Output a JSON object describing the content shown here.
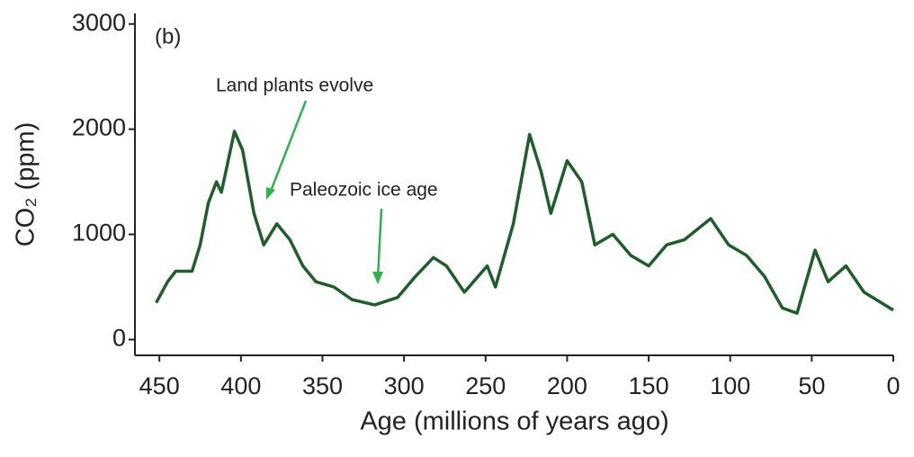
{
  "chart_data": {
    "type": "line",
    "panel_label": "(b)",
    "x_label": "Age (millions of years ago)",
    "y_label": "CO₂ (ppm)",
    "annotations": [
      "Land plants evolve",
      "Paleozoic ice age"
    ],
    "x": [
      452,
      445,
      440,
      430,
      425,
      420,
      415,
      412,
      404,
      399,
      392,
      386,
      378,
      370,
      362,
      354,
      343,
      332,
      318,
      304,
      293,
      282,
      274,
      263,
      249,
      244,
      233,
      223,
      216,
      210,
      200,
      191,
      183,
      172,
      161,
      150,
      139,
      128,
      112,
      101,
      90,
      79,
      68,
      59,
      48,
      40,
      29,
      18,
      0
    ],
    "series": [
      {
        "color": "#1e5e2a",
        "values": [
          350,
          550,
          650,
          650,
          900,
          1300,
          1500,
          1400,
          1980,
          1800,
          1200,
          900,
          1100,
          950,
          700,
          550,
          500,
          380,
          330,
          400,
          600,
          780,
          700,
          450,
          700,
          500,
          1100,
          1950,
          1600,
          1200,
          1700,
          1500,
          900,
          1000,
          800,
          700,
          900,
          950,
          1150,
          900,
          800,
          600,
          300,
          250,
          850,
          550,
          700,
          450,
          280
        ]
      }
    ],
    "xlim": [
      465,
      0
    ],
    "xticks": [
      450,
      400,
      350,
      300,
      250,
      200,
      150,
      100,
      50,
      0
    ],
    "ylim": [
      -150,
      3100
    ],
    "yticks": [
      0,
      1000,
      2000,
      3000
    ]
  }
}
